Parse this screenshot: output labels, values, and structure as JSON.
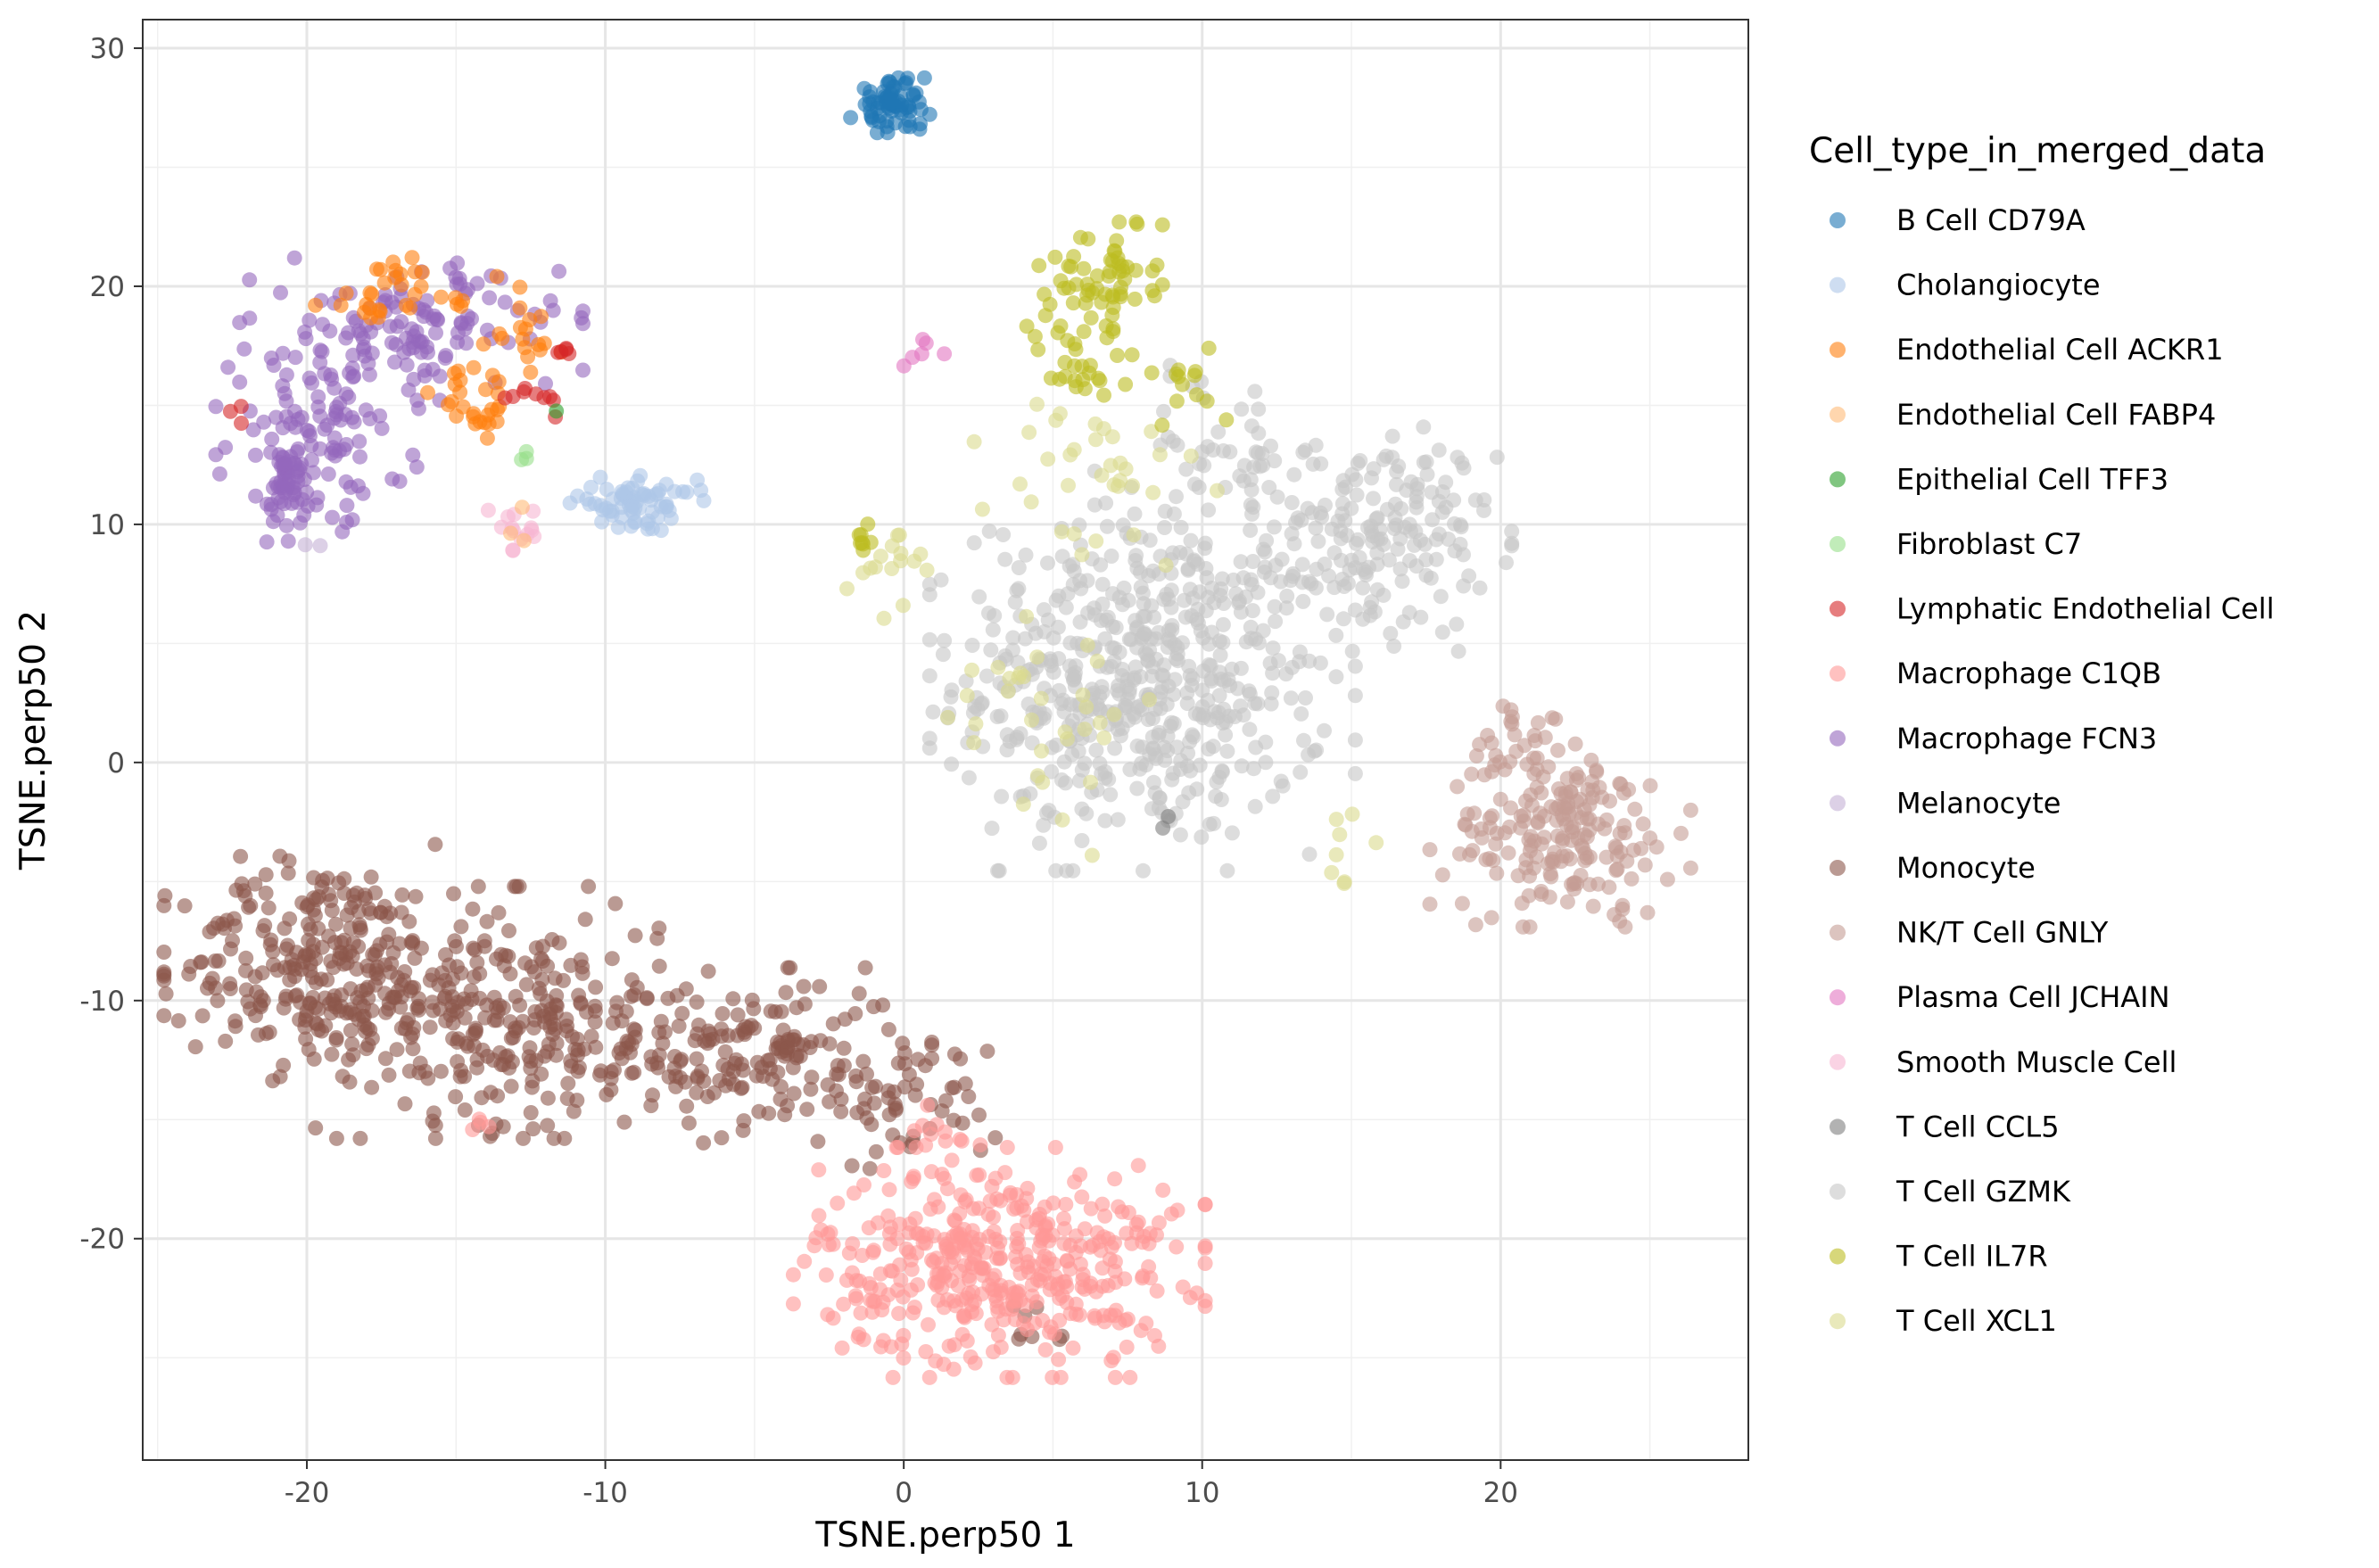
{
  "chart_data": {
    "type": "scatter",
    "title": "",
    "xlabel": "TSNE.perp50 1",
    "ylabel": "TSNE.perp50 2",
    "xlim": [
      -25.5,
      28.3
    ],
    "ylim": [
      -29.3,
      31.2
    ],
    "xticks": [
      -20,
      -10,
      0,
      10,
      20
    ],
    "yticks": [
      -20,
      -10,
      0,
      10,
      20,
      30
    ],
    "x_minor": [
      -25,
      -15,
      -5,
      5,
      15,
      25
    ],
    "y_minor": [
      -25,
      -15,
      -5,
      5,
      15,
      25
    ],
    "grid": true,
    "legend_title": "Cell_type_in_merged_data",
    "legend_position": "right",
    "point_opacity": 0.6,
    "series": [
      {
        "name": "B Cell CD79A",
        "color": "#1f77b4",
        "clusters": [
          {
            "cx": -0.4,
            "cy": 27.6,
            "sx": 0.6,
            "sy": 0.5,
            "n": 70
          }
        ]
      },
      {
        "name": "Cholangiocyte",
        "color": "#aec7e8",
        "clusters": [
          {
            "cx": -9.0,
            "cy": 10.9,
            "sx": 1.0,
            "sy": 0.5,
            "n": 70
          }
        ]
      },
      {
        "name": "Endothelial Cell ACKR1",
        "color": "#ff7f0e",
        "clusters": [
          {
            "cx": -17.0,
            "cy": 19.6,
            "sx": 1.8,
            "sy": 0.7,
            "n": 35
          },
          {
            "cx": -14.2,
            "cy": 15.5,
            "sx": 0.8,
            "sy": 1.2,
            "n": 30
          },
          {
            "cx": -12.2,
            "cy": 17.6,
            "sx": 0.6,
            "sy": 0.7,
            "n": 12
          }
        ]
      },
      {
        "name": "Endothelial Cell FABP4",
        "color": "#ffbb78",
        "clusters": [
          {
            "cx": -13.0,
            "cy": 9.8,
            "sx": 0.3,
            "sy": 0.4,
            "n": 3
          }
        ]
      },
      {
        "name": "Epithelial Cell TFF3",
        "color": "#2ca02c",
        "clusters": [
          {
            "cx": -11.8,
            "cy": 14.8,
            "sx": 0.1,
            "sy": 0.1,
            "n": 1
          }
        ]
      },
      {
        "name": "Fibroblast C7",
        "color": "#98df8a",
        "clusters": [
          {
            "cx": -12.7,
            "cy": 13.0,
            "sx": 0.3,
            "sy": 0.2,
            "n": 3
          }
        ]
      },
      {
        "name": "Lymphatic Endothelial Cell",
        "color": "#d62728",
        "clusters": [
          {
            "cx": -12.5,
            "cy": 15.2,
            "sx": 0.5,
            "sy": 0.3,
            "n": 9
          },
          {
            "cx": -11.7,
            "cy": 17.4,
            "sx": 0.4,
            "sy": 0.3,
            "n": 5
          },
          {
            "cx": -22.0,
            "cy": 14.8,
            "sx": 0.4,
            "sy": 0.3,
            "n": 3
          }
        ]
      },
      {
        "name": "Macrophage C1QB",
        "color": "#ff9896",
        "clusters": [
          {
            "cx": 3.2,
            "cy": -21.0,
            "sx": 3.0,
            "sy": 2.1,
            "n": 420
          },
          {
            "cx": 1.0,
            "cy": -15.6,
            "sx": 0.8,
            "sy": 0.7,
            "n": 12
          },
          {
            "cx": -14.0,
            "cy": -15.4,
            "sx": 0.8,
            "sy": 0.3,
            "n": 4
          }
        ]
      },
      {
        "name": "Macrophage FCN3",
        "color": "#9467bd",
        "clusters": [
          {
            "cx": -16.5,
            "cy": 18.2,
            "sx": 2.5,
            "sy": 1.3,
            "n": 130
          },
          {
            "cx": -19.6,
            "cy": 13.6,
            "sx": 1.5,
            "sy": 1.7,
            "n": 110
          },
          {
            "cx": -20.8,
            "cy": 11.5,
            "sx": 0.5,
            "sy": 1.2,
            "n": 40
          }
        ]
      },
      {
        "name": "Melanocyte",
        "color": "#c5b0d5",
        "clusters": [
          {
            "cx": -19.8,
            "cy": 9.0,
            "sx": 0.2,
            "sy": 0.2,
            "n": 2
          }
        ]
      },
      {
        "name": "Monocyte",
        "color": "#8c564b",
        "clusters": [
          {
            "cx": -19.5,
            "cy": -8.5,
            "sx": 2.3,
            "sy": 2.2,
            "n": 260
          },
          {
            "cx": -13.5,
            "cy": -10.5,
            "sx": 2.7,
            "sy": 2.3,
            "n": 260
          },
          {
            "cx": -5.5,
            "cy": -12.3,
            "sx": 2.8,
            "sy": 1.6,
            "n": 190
          },
          {
            "cx": 0.5,
            "cy": -14.3,
            "sx": 1.4,
            "sy": 1.2,
            "n": 45
          },
          {
            "cx": 4.5,
            "cy": -23.8,
            "sx": 0.6,
            "sy": 0.7,
            "n": 8
          }
        ]
      },
      {
        "name": "NK/T Cell GNLY",
        "color": "#c49c94",
        "clusters": [
          {
            "cx": 22.0,
            "cy": -3.0,
            "sx": 1.9,
            "sy": 1.7,
            "n": 190
          },
          {
            "cx": 21.0,
            "cy": 1.0,
            "sx": 1.0,
            "sy": 1.0,
            "n": 25
          }
        ]
      },
      {
        "name": "Plasma Cell JCHAIN",
        "color": "#e377c2",
        "clusters": [
          {
            "cx": 1.0,
            "cy": 17.2,
            "sx": 0.5,
            "sy": 0.3,
            "n": 6
          }
        ]
      },
      {
        "name": "Smooth Muscle Cell",
        "color": "#f7b6d2",
        "clusters": [
          {
            "cx": -13.0,
            "cy": 9.6,
            "sx": 0.4,
            "sy": 0.6,
            "n": 14
          }
        ]
      },
      {
        "name": "T Cell CCL5",
        "color": "#7f7f7f",
        "clusters": [
          {
            "cx": 8.6,
            "cy": -2.6,
            "sx": 0.2,
            "sy": 0.2,
            "n": 2
          }
        ]
      },
      {
        "name": "T Cell GZMK",
        "color": "#c7c7c7",
        "clusters": [
          {
            "cx": 8.0,
            "cy": 3.5,
            "sx": 3.1,
            "sy": 3.5,
            "n": 560
          },
          {
            "cx": 16.0,
            "cy": 9.5,
            "sx": 1.9,
            "sy": 2.1,
            "n": 170
          },
          {
            "cx": 11.0,
            "cy": 13.0,
            "sx": 2.0,
            "sy": 1.6,
            "n": 50
          }
        ]
      },
      {
        "name": "T Cell IL7R",
        "color": "#bcbd22",
        "clusters": [
          {
            "cx": 6.6,
            "cy": 20.4,
            "sx": 0.9,
            "sy": 1.0,
            "n": 60
          },
          {
            "cx": 5.8,
            "cy": 16.5,
            "sx": 1.1,
            "sy": 1.2,
            "n": 30
          },
          {
            "cx": 9.5,
            "cy": 16.0,
            "sx": 1.2,
            "sy": 1.0,
            "n": 12
          },
          {
            "cx": -1.3,
            "cy": 9.0,
            "sx": 0.3,
            "sy": 0.5,
            "n": 8
          }
        ]
      },
      {
        "name": "T Cell XCL1",
        "color": "#dbdb8d",
        "clusters": [
          {
            "cx": -0.8,
            "cy": 8.4,
            "sx": 0.7,
            "sy": 0.5,
            "n": 14
          },
          {
            "cx": 6.5,
            "cy": 11.5,
            "sx": 1.8,
            "sy": 2.0,
            "n": 35
          },
          {
            "cx": 4.0,
            "cy": 3.0,
            "sx": 2.5,
            "sy": 3.0,
            "n": 35
          },
          {
            "cx": 14.5,
            "cy": -4.0,
            "sx": 0.6,
            "sy": 1.0,
            "n": 8
          }
        ]
      }
    ]
  }
}
